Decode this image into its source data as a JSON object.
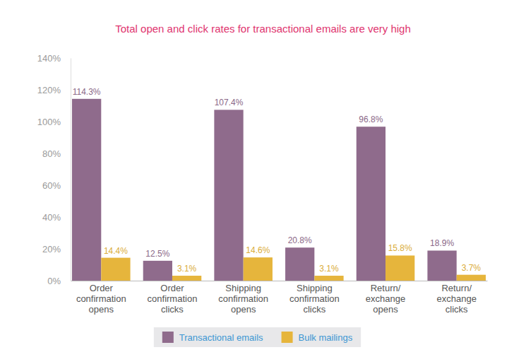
{
  "chart_data": {
    "type": "bar",
    "title": "Total open and click rates for transactional emails are very high",
    "categories": [
      "Order confirmation opens",
      "Order confirmation clicks",
      "Shipping confirmation opens",
      "Shipping confirmation clicks",
      "Return/ exchange opens",
      "Return/ exchange clicks"
    ],
    "series": [
      {
        "name": "Transactional emails",
        "color": "#8f6b8c",
        "values": [
          114.3,
          12.5,
          107.4,
          20.8,
          96.8,
          18.9
        ],
        "value_labels": [
          "114.3%",
          "12.5%",
          "107.4%",
          "20.8%",
          "96.8%",
          "18.9%"
        ]
      },
      {
        "name": "Bulk mailings",
        "color": "#e6b53c",
        "values": [
          14.4,
          3.1,
          14.6,
          3.1,
          15.8,
          3.7
        ],
        "value_labels": [
          "14.4%",
          "3.1%",
          "14.6%",
          "3.1%",
          "15.8%",
          "3.7%"
        ]
      }
    ],
    "ylim": [
      0,
      140
    ],
    "yticks": [
      {
        "value": 0,
        "label": "0%"
      },
      {
        "value": 20,
        "label": "20%"
      },
      {
        "value": 40,
        "label": "40%"
      },
      {
        "value": 60,
        "label": "60%"
      },
      {
        "value": 80,
        "label": "80%"
      },
      {
        "value": 100,
        "label": "100%"
      },
      {
        "value": 120,
        "label": "120%"
      },
      {
        "value": 140,
        "label": "140%"
      }
    ],
    "grid": false,
    "data_labels": true,
    "legend": "bottom"
  }
}
